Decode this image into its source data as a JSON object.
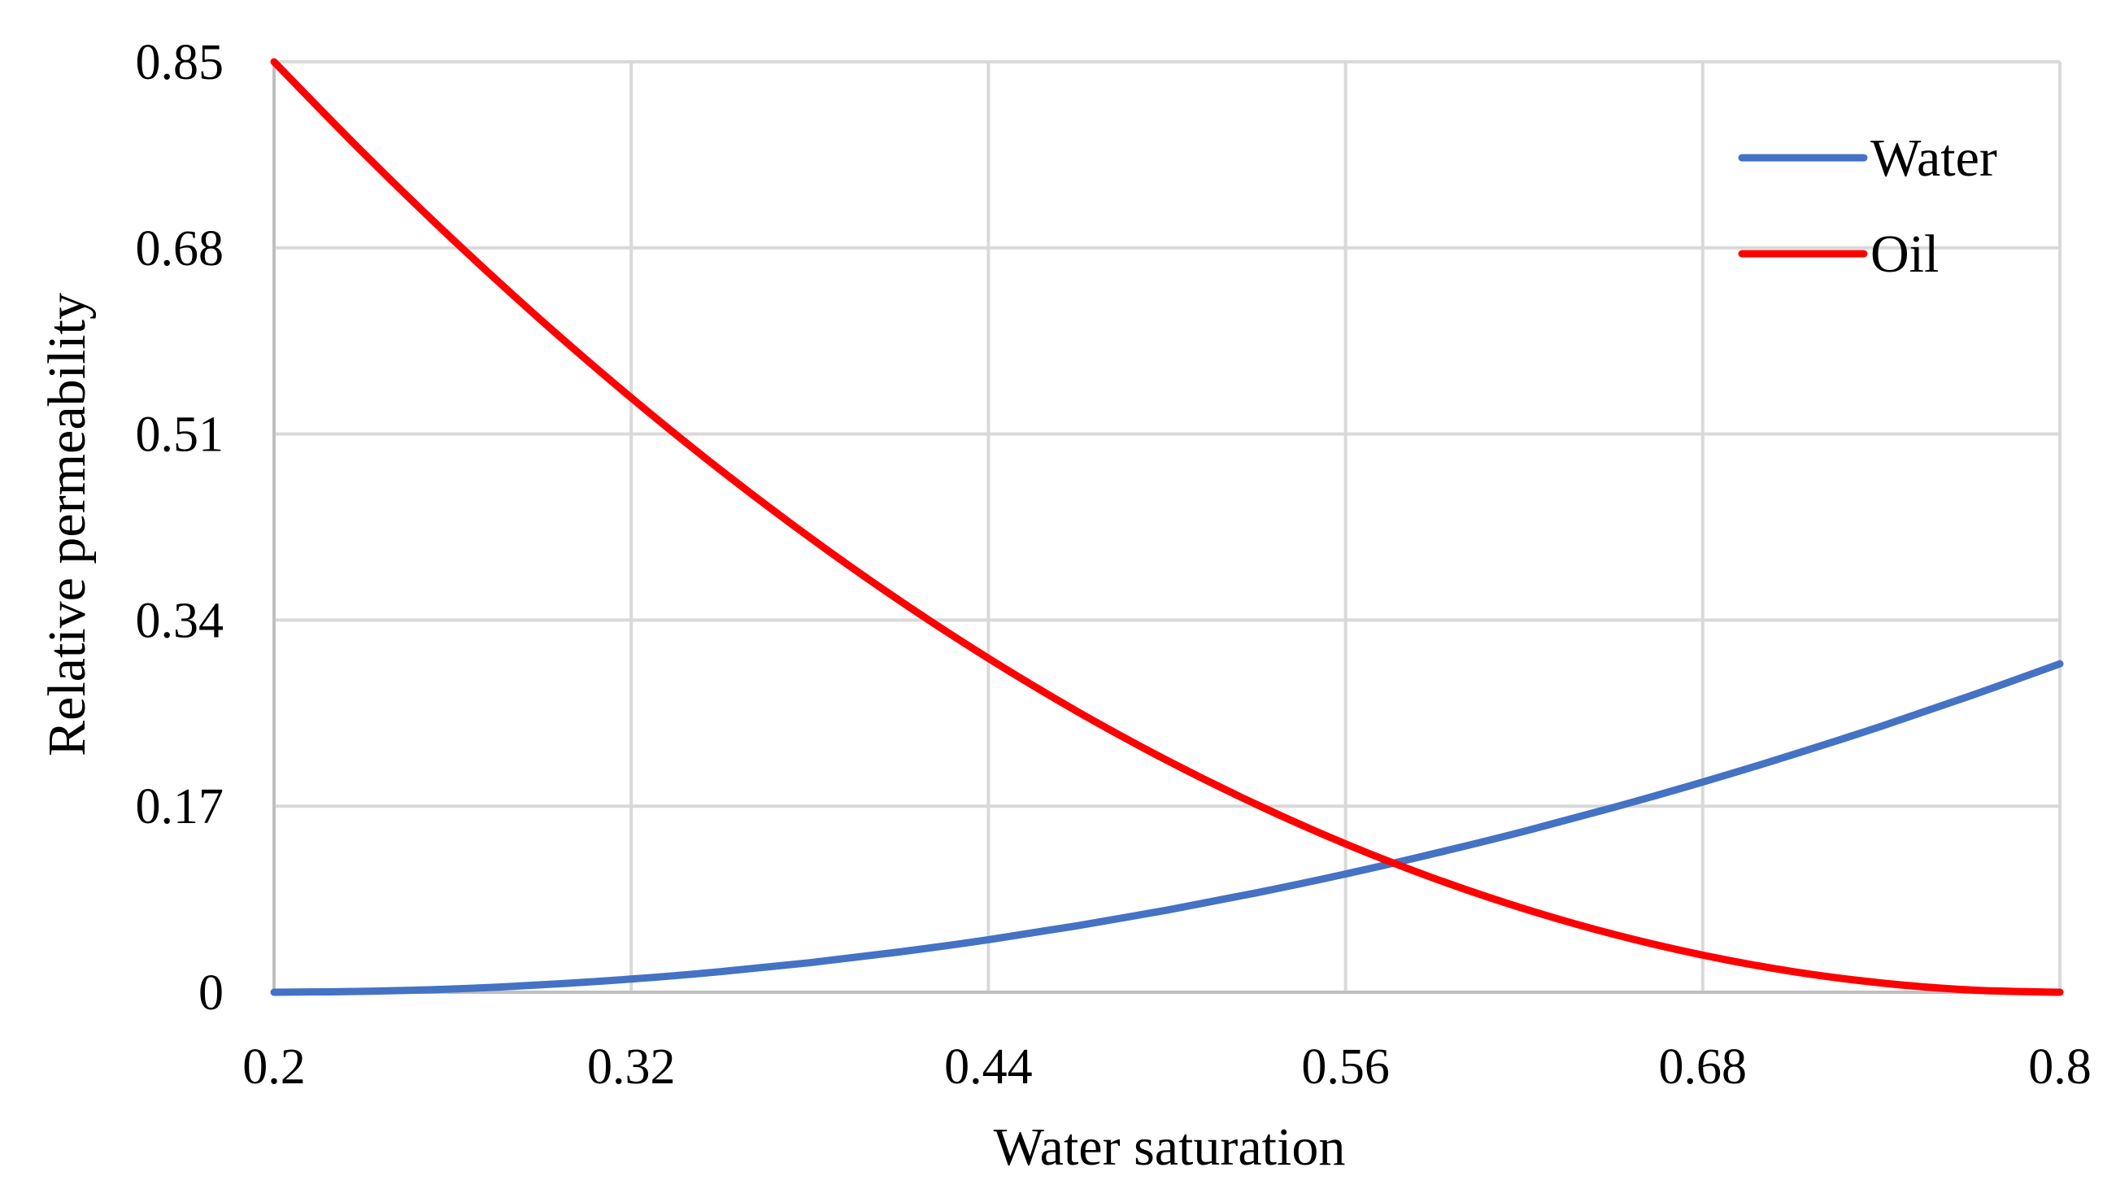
{
  "chart_data": {
    "type": "line",
    "title": "",
    "xlabel": "Water saturation",
    "ylabel": "Relative permeability",
    "xlim": [
      0.2,
      0.8
    ],
    "ylim": [
      0,
      0.85
    ],
    "xticks": [
      0.2,
      0.32,
      0.44,
      0.56,
      0.68,
      0.8
    ],
    "xtick_labels": [
      "0.2",
      "0.32",
      "0.44",
      "0.56",
      "0.68",
      "0.8"
    ],
    "yticks": [
      0,
      0.17,
      0.34,
      0.51,
      0.68,
      0.85
    ],
    "ytick_labels": [
      "0",
      "0.17",
      "0.34",
      "0.51",
      "0.68",
      "0.85"
    ],
    "grid": true,
    "legend_position": "top-right",
    "series": [
      {
        "name": "Water",
        "color": "#4472C4",
        "x": [
          0.2,
          0.23,
          0.26,
          0.29,
          0.32,
          0.35,
          0.38,
          0.41,
          0.44,
          0.47,
          0.5,
          0.53,
          0.56,
          0.59,
          0.62,
          0.65,
          0.68,
          0.71,
          0.74,
          0.77,
          0.8
        ],
        "y": [
          0.0,
          0.0008,
          0.003,
          0.0068,
          0.012,
          0.0188,
          0.027,
          0.0368,
          0.048,
          0.0608,
          0.075,
          0.0908,
          0.108,
          0.1268,
          0.147,
          0.1688,
          0.192,
          0.2168,
          0.243,
          0.2708,
          0.3
        ]
      },
      {
        "name": "Oil",
        "color": "#FF0000",
        "x": [
          0.2,
          0.23,
          0.26,
          0.29,
          0.32,
          0.35,
          0.38,
          0.41,
          0.44,
          0.47,
          0.5,
          0.53,
          0.56,
          0.59,
          0.62,
          0.65,
          0.68,
          0.71,
          0.74,
          0.77,
          0.8
        ],
        "y": [
          0.85,
          0.7667,
          0.6878,
          0.6133,
          0.5431,
          0.4771,
          0.4155,
          0.3581,
          0.3051,
          0.2563,
          0.2118,
          0.1716,
          0.1355,
          0.1038,
          0.0763,
          0.053,
          0.0339,
          0.019,
          0.0085,
          0.0021,
          0.0
        ]
      }
    ]
  }
}
